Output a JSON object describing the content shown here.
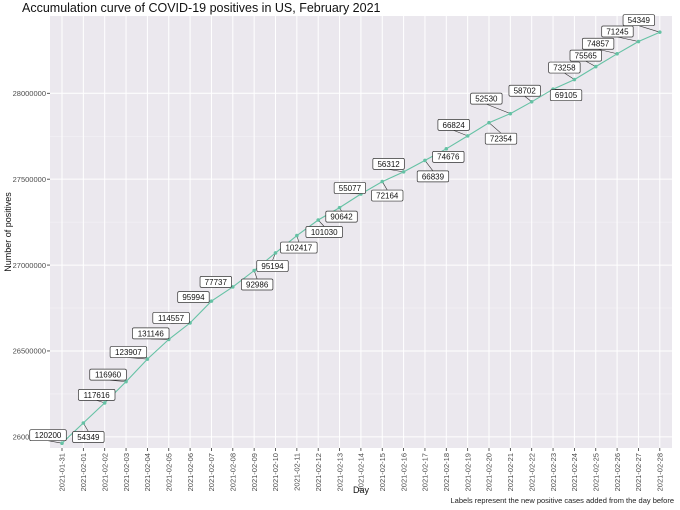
{
  "chart_data": {
    "type": "line",
    "title": "Accumulation curve of COVID-19 positives in US, February 2021",
    "xlabel": "Day",
    "ylabel": "Number of positives",
    "caption": "Labels represent the new positive cases added from the day before",
    "x": [
      "2021-01-31",
      "2021-02-01",
      "2021-02-02",
      "2021-02-03",
      "2021-02-04",
      "2021-02-05",
      "2021-02-06",
      "2021-02-07",
      "2021-02-08",
      "2021-02-09",
      "2021-02-10",
      "2021-02-11",
      "2021-02-12",
      "2021-02-13",
      "2021-02-14",
      "2021-02-15",
      "2021-02-16",
      "2021-02-17",
      "2021-02-18",
      "2021-02-19",
      "2021-02-20",
      "2021-02-21",
      "2021-02-22",
      "2021-02-23",
      "2021-02-24",
      "2021-02-25",
      "2021-02-26",
      "2021-02-27",
      "2021-02-28"
    ],
    "y": [
      25963000,
      26080616,
      26197576,
      26321483,
      26452629,
      26567186,
      26663180,
      26790000,
      26872986,
      26968180,
      27070597,
      27171627,
      27262269,
      27334433,
      27414000,
      27486164,
      27542476,
      27609315,
      27676600,
      27752100,
      27829000,
      27881530,
      27950635,
      28023893,
      28080000,
      28155365,
      28230222,
      28301467,
      28355816
    ],
    "labels": [
      "120200",
      "54349",
      "117616",
      "116960",
      "123907",
      "131146",
      "114557",
      "95994",
      "77737",
      "92986",
      "95194",
      "102417",
      "101030",
      "90642",
      "55077",
      "72164",
      "56312",
      "66839",
      "74676",
      "66824",
      "72354",
      "52530",
      "58702",
      "69105",
      "73258",
      "75565",
      "74857",
      "71245",
      "54349"
    ],
    "yticks": [
      26000000,
      26500000,
      27000000,
      27500000,
      28000000
    ],
    "ytick_labels": [
      "26000000",
      "26500000",
      "27000000",
      "27500000",
      "28000000"
    ],
    "ylim": [
      25935000,
      28450000
    ],
    "grid": true,
    "colors": {
      "line": "#66c2a5",
      "panel": "#ebe8ee",
      "grid_major": "#ffffff",
      "label_border": "#333333"
    }
  }
}
